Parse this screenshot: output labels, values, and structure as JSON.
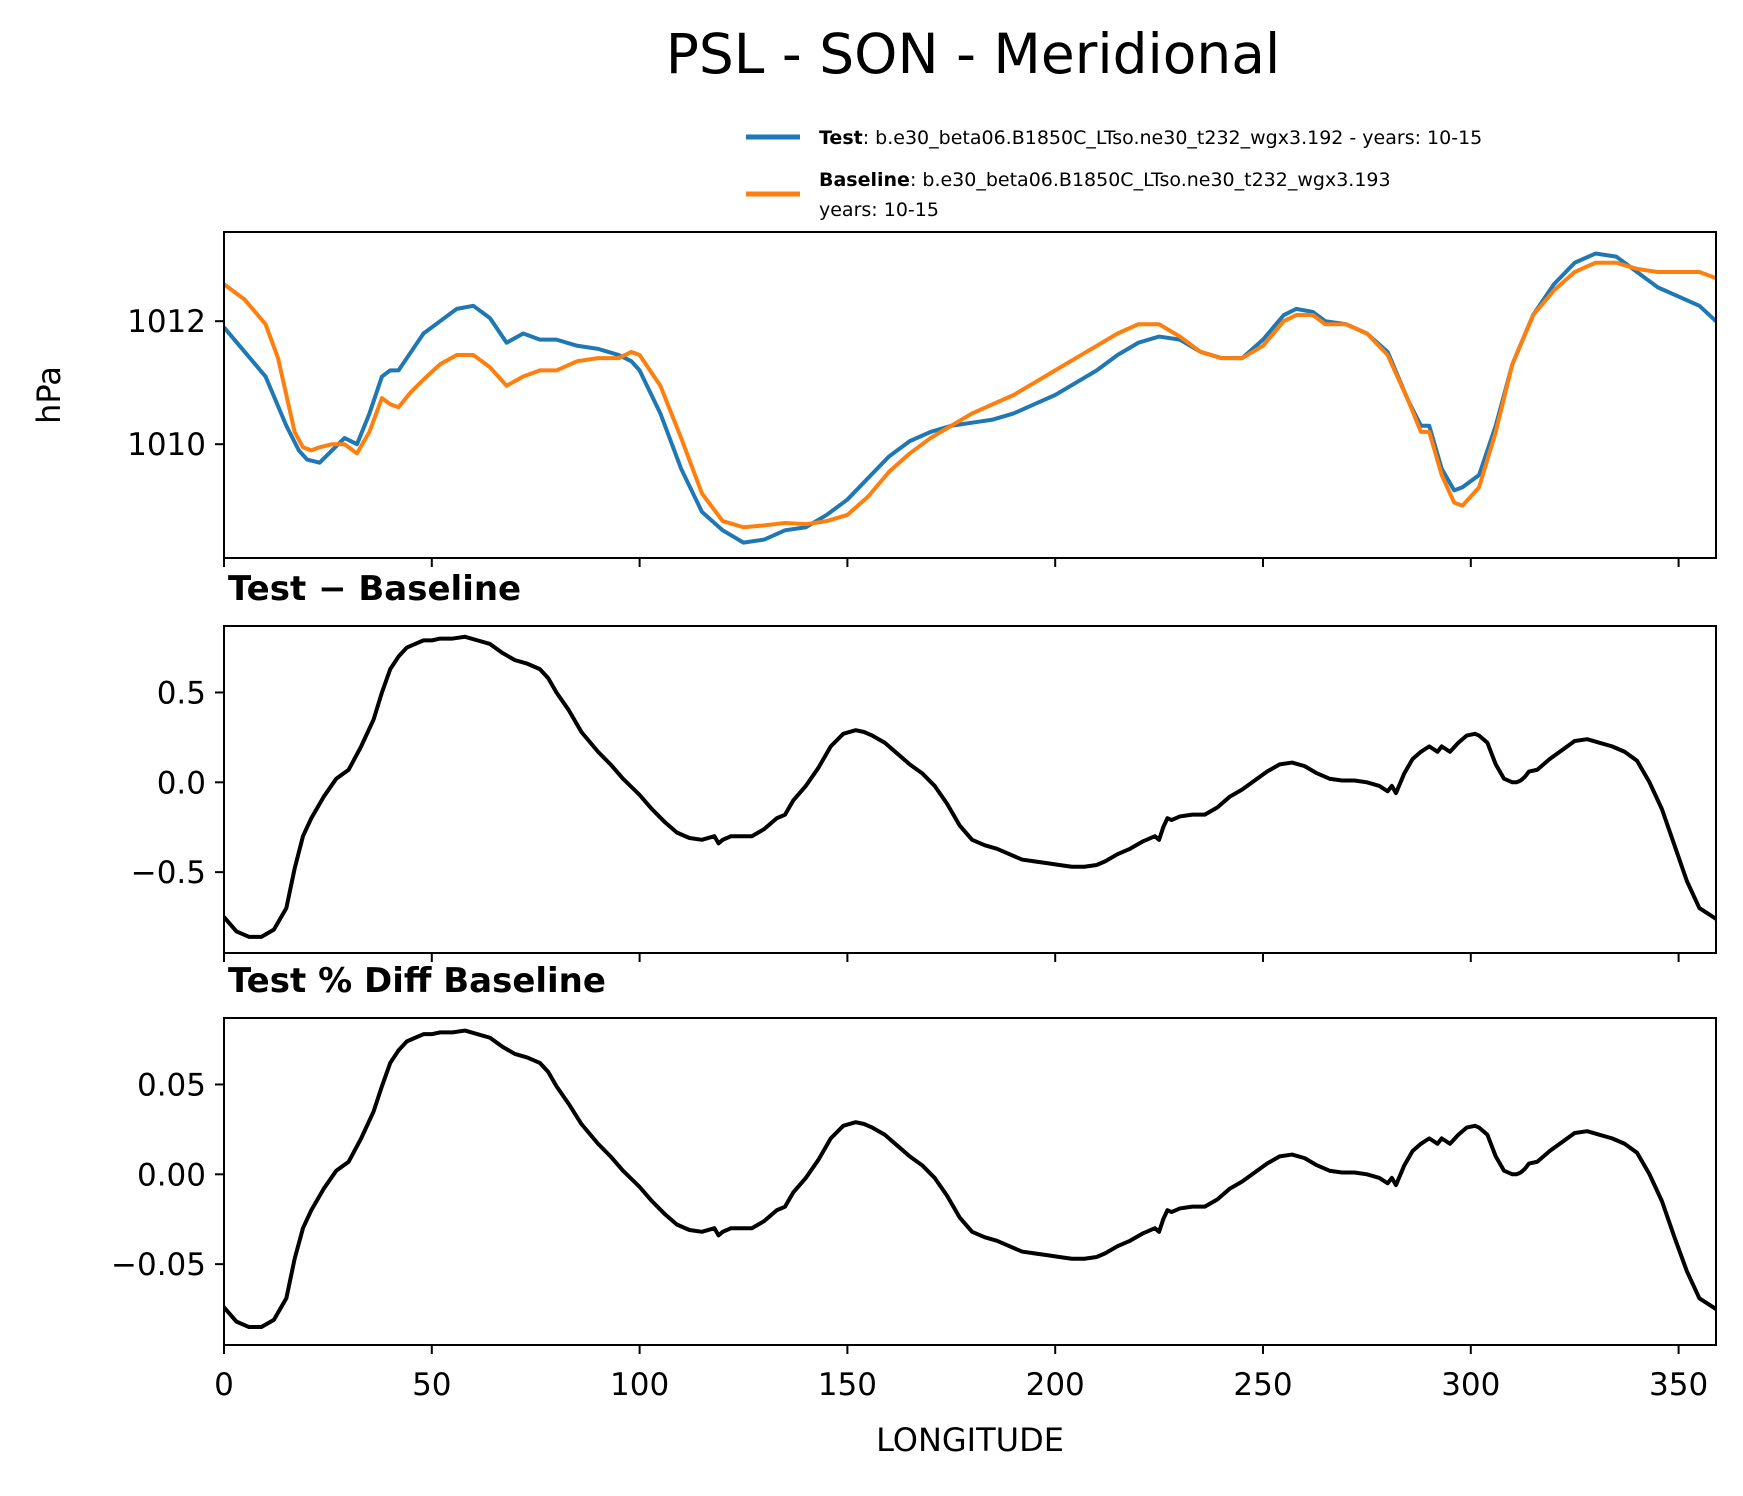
{
  "figure": {
    "title": "PSL - SON - Meridional"
  },
  "colors": {
    "test": "#1f77b4",
    "baseline": "#ff7f0e",
    "diff": "#000000"
  },
  "legend": [
    {
      "name": "Test",
      "sep": ": ",
      "text": "b.e30_beta06.B1850C_LTso.ne30_t232_wgx3.192 - years: 10-15",
      "text2": ""
    },
    {
      "name": "Baseline",
      "sep": ": ",
      "text": "b.e30_beta06.B1850C_LTso.ne30_t232_wgx3.193",
      "text2": "years: 10-15"
    }
  ],
  "chart_data": [
    {
      "type": "line",
      "title": "",
      "xlabel": "",
      "ylabel": "hPa",
      "xlim": [
        0,
        359
      ],
      "ylim": [
        1008.15,
        1013.45
      ],
      "xticks": [
        0,
        50,
        100,
        150,
        200,
        250,
        300,
        350
      ],
      "yticks": [
        1010,
        1012
      ],
      "ytick_labels": [
        "1010",
        "1012"
      ],
      "show_xtick_labels": false,
      "series": [
        {
          "name": "Test",
          "color_key": "test",
          "x": [
            0,
            5,
            10,
            15,
            18,
            20,
            23,
            26,
            29,
            32,
            35,
            38,
            40,
            42,
            45,
            48,
            52,
            56,
            60,
            64,
            68,
            72,
            76,
            80,
            85,
            90,
            95,
            98,
            100,
            105,
            110,
            115,
            120,
            125,
            130,
            135,
            140,
            145,
            150,
            155,
            160,
            165,
            170,
            175,
            180,
            185,
            190,
            195,
            200,
            205,
            210,
            215,
            220,
            225,
            230,
            235,
            240,
            245,
            250,
            255,
            258,
            262,
            265,
            270,
            275,
            280,
            285,
            288,
            290,
            293,
            296,
            298,
            302,
            306,
            310,
            315,
            320,
            325,
            330,
            335,
            340,
            345,
            350,
            355,
            359
          ],
          "y": [
            1011.9,
            1011.5,
            1011.1,
            1010.3,
            1009.9,
            1009.75,
            1009.7,
            1009.9,
            1010.1,
            1010.0,
            1010.5,
            1011.1,
            1011.2,
            1011.2,
            1011.5,
            1011.8,
            1012.0,
            1012.2,
            1012.25,
            1012.05,
            1011.65,
            1011.8,
            1011.7,
            1011.7,
            1011.6,
            1011.55,
            1011.45,
            1011.35,
            1011.2,
            1010.5,
            1009.6,
            1008.9,
            1008.6,
            1008.4,
            1008.45,
            1008.6,
            1008.65,
            1008.85,
            1009.1,
            1009.45,
            1009.8,
            1010.05,
            1010.2,
            1010.3,
            1010.35,
            1010.4,
            1010.5,
            1010.65,
            1010.8,
            1011.0,
            1011.2,
            1011.45,
            1011.65,
            1011.75,
            1011.7,
            1011.5,
            1011.4,
            1011.4,
            1011.7,
            1012.1,
            1012.2,
            1012.15,
            1012.0,
            1011.95,
            1011.8,
            1011.5,
            1010.7,
            1010.3,
            1010.3,
            1009.6,
            1009.25,
            1009.3,
            1009.5,
            1010.3,
            1011.3,
            1012.1,
            1012.6,
            1012.95,
            1013.1,
            1013.05,
            1012.8,
            1012.55,
            1012.4,
            1012.25,
            1012.0
          ]
        },
        {
          "name": "Baseline",
          "color_key": "baseline",
          "x": [
            0,
            5,
            10,
            13,
            15,
            17,
            19,
            21,
            23,
            26,
            29,
            32,
            35,
            38,
            40,
            42,
            45,
            48,
            52,
            56,
            60,
            64,
            68,
            72,
            76,
            80,
            85,
            90,
            95,
            98,
            100,
            105,
            110,
            115,
            120,
            125,
            130,
            135,
            140,
            145,
            150,
            155,
            160,
            165,
            170,
            175,
            180,
            185,
            190,
            195,
            200,
            205,
            210,
            215,
            220,
            225,
            230,
            235,
            240,
            245,
            250,
            255,
            258,
            262,
            265,
            270,
            275,
            280,
            285,
            288,
            290,
            293,
            296,
            298,
            302,
            306,
            310,
            315,
            320,
            325,
            330,
            335,
            340,
            345,
            350,
            355,
            359
          ],
          "y": [
            1012.6,
            1012.35,
            1011.95,
            1011.4,
            1010.8,
            1010.2,
            1009.95,
            1009.9,
            1009.95,
            1010.0,
            1010.0,
            1009.85,
            1010.2,
            1010.75,
            1010.65,
            1010.6,
            1010.85,
            1011.05,
            1011.3,
            1011.45,
            1011.45,
            1011.25,
            1010.95,
            1011.1,
            1011.2,
            1011.2,
            1011.35,
            1011.4,
            1011.4,
            1011.5,
            1011.45,
            1010.95,
            1010.1,
            1009.2,
            1008.75,
            1008.65,
            1008.68,
            1008.72,
            1008.7,
            1008.75,
            1008.85,
            1009.15,
            1009.55,
            1009.85,
            1010.1,
            1010.3,
            1010.5,
            1010.65,
            1010.8,
            1011.0,
            1011.2,
            1011.4,
            1011.6,
            1011.8,
            1011.95,
            1011.95,
            1011.75,
            1011.5,
            1011.4,
            1011.4,
            1011.6,
            1012.0,
            1012.1,
            1012.1,
            1011.95,
            1011.95,
            1011.8,
            1011.45,
            1010.7,
            1010.2,
            1010.2,
            1009.5,
            1009.05,
            1009.0,
            1009.3,
            1010.2,
            1011.3,
            1012.1,
            1012.5,
            1012.8,
            1012.95,
            1012.95,
            1012.85,
            1012.8,
            1012.8,
            1012.8,
            1012.7
          ]
        }
      ]
    },
    {
      "type": "line",
      "title": "Test − Baseline",
      "xlabel": "",
      "ylabel": "",
      "xlim": [
        0,
        359
      ],
      "ylim": [
        -0.95,
        0.87
      ],
      "xticks": [
        0,
        50,
        100,
        150,
        200,
        250,
        300,
        350
      ],
      "yticks": [
        -0.5,
        0.0,
        0.5
      ],
      "ytick_labels": [
        "−0.5",
        "0.0",
        "0.5"
      ],
      "show_xtick_labels": false,
      "series": [
        {
          "name": "Test − Baseline",
          "color_key": "diff",
          "x": [
            0,
            3,
            6,
            9,
            12,
            15,
            17,
            19,
            21,
            24,
            27,
            30,
            33,
            36,
            38,
            40,
            42,
            44,
            46,
            48,
            50,
            52,
            55,
            58,
            61,
            64,
            67,
            70,
            73,
            76,
            78,
            80,
            83,
            86,
            90,
            93,
            96,
            100,
            103,
            106,
            109,
            112,
            115,
            118,
            119,
            120,
            121,
            122,
            124,
            127,
            130,
            133,
            135,
            137,
            140,
            143,
            146,
            149,
            152,
            154,
            156,
            159,
            162,
            165,
            168,
            171,
            174,
            177,
            180,
            183,
            186,
            189,
            192,
            195,
            198,
            201,
            204,
            207,
            210,
            212,
            215,
            218,
            221,
            224,
            225,
            226,
            227,
            228,
            230,
            233,
            236,
            239,
            242,
            245,
            248,
            251,
            254,
            257,
            260,
            263,
            266,
            269,
            272,
            275,
            278,
            280,
            281,
            282,
            284,
            286,
            288,
            290,
            292,
            293,
            295,
            297,
            299,
            301,
            302,
            304,
            306,
            308,
            310,
            311,
            312,
            313,
            314,
            316,
            319,
            322,
            325,
            328,
            331,
            334,
            337,
            340,
            343,
            346,
            349,
            352,
            355,
            357,
            359
          ],
          "y": [
            -0.75,
            -0.83,
            -0.86,
            -0.86,
            -0.82,
            -0.7,
            -0.48,
            -0.3,
            -0.2,
            -0.08,
            0.02,
            0.07,
            0.2,
            0.35,
            0.5,
            0.63,
            0.7,
            0.75,
            0.77,
            0.79,
            0.79,
            0.8,
            0.8,
            0.81,
            0.79,
            0.77,
            0.72,
            0.68,
            0.66,
            0.63,
            0.58,
            0.5,
            0.4,
            0.28,
            0.17,
            0.1,
            0.02,
            -0.07,
            -0.15,
            -0.22,
            -0.28,
            -0.31,
            -0.32,
            -0.3,
            -0.34,
            -0.32,
            -0.31,
            -0.3,
            -0.3,
            -0.3,
            -0.26,
            -0.2,
            -0.18,
            -0.1,
            -0.02,
            0.08,
            0.2,
            0.27,
            0.29,
            0.28,
            0.26,
            0.22,
            0.16,
            0.1,
            0.05,
            -0.02,
            -0.12,
            -0.24,
            -0.32,
            -0.35,
            -0.37,
            -0.4,
            -0.43,
            -0.44,
            -0.45,
            -0.46,
            -0.47,
            -0.47,
            -0.46,
            -0.44,
            -0.4,
            -0.37,
            -0.33,
            -0.3,
            -0.32,
            -0.25,
            -0.2,
            -0.21,
            -0.19,
            -0.18,
            -0.18,
            -0.14,
            -0.08,
            -0.04,
            0.01,
            0.06,
            0.1,
            0.11,
            0.09,
            0.05,
            0.02,
            0.01,
            0.01,
            0.0,
            -0.02,
            -0.05,
            -0.02,
            -0.06,
            0.05,
            0.13,
            0.17,
            0.2,
            0.17,
            0.2,
            0.17,
            0.22,
            0.26,
            0.27,
            0.26,
            0.22,
            0.1,
            0.02,
            0.0,
            0.0,
            0.01,
            0.03,
            0.06,
            0.07,
            0.13,
            0.18,
            0.23,
            0.24,
            0.22,
            0.2,
            0.17,
            0.12,
            0.0,
            -0.15,
            -0.35,
            -0.55,
            -0.7,
            -0.73,
            -0.76
          ]
        }
      ]
    },
    {
      "type": "line",
      "title": "Test % Diff Baseline",
      "xlabel": "LONGITUDE",
      "ylabel": "",
      "xlim": [
        0,
        359
      ],
      "ylim": [
        -0.095,
        0.087
      ],
      "xticks": [
        0,
        50,
        100,
        150,
        200,
        250,
        300,
        350
      ],
      "yticks": [
        -0.05,
        0.0,
        0.05
      ],
      "ytick_labels": [
        "−0.05",
        "0.00",
        "0.05"
      ],
      "xtick_labels": [
        "0",
        "50",
        "100",
        "150",
        "200",
        "250",
        "300",
        "350"
      ],
      "show_xtick_labels": true,
      "series": [
        {
          "name": "Test % Diff Baseline",
          "color_key": "diff",
          "x": [
            0,
            3,
            6,
            9,
            12,
            15,
            17,
            19,
            21,
            24,
            27,
            30,
            33,
            36,
            38,
            40,
            42,
            44,
            46,
            48,
            50,
            52,
            55,
            58,
            61,
            64,
            67,
            70,
            73,
            76,
            78,
            80,
            83,
            86,
            90,
            93,
            96,
            100,
            103,
            106,
            109,
            112,
            115,
            118,
            119,
            120,
            121,
            122,
            124,
            127,
            130,
            133,
            135,
            137,
            140,
            143,
            146,
            149,
            152,
            154,
            156,
            159,
            162,
            165,
            168,
            171,
            174,
            177,
            180,
            183,
            186,
            189,
            192,
            195,
            198,
            201,
            204,
            207,
            210,
            212,
            215,
            218,
            221,
            224,
            225,
            226,
            227,
            228,
            230,
            233,
            236,
            239,
            242,
            245,
            248,
            251,
            254,
            257,
            260,
            263,
            266,
            269,
            272,
            275,
            278,
            280,
            281,
            282,
            284,
            286,
            288,
            290,
            292,
            293,
            295,
            297,
            299,
            301,
            302,
            304,
            306,
            308,
            310,
            311,
            312,
            313,
            314,
            316,
            319,
            322,
            325,
            328,
            331,
            334,
            337,
            340,
            343,
            346,
            349,
            352,
            355,
            357,
            359
          ],
          "y": [
            -0.074,
            -0.082,
            -0.085,
            -0.085,
            -0.081,
            -0.069,
            -0.047,
            -0.03,
            -0.02,
            -0.008,
            0.002,
            0.007,
            0.02,
            0.035,
            0.049,
            0.062,
            0.069,
            0.074,
            0.076,
            0.078,
            0.078,
            0.079,
            0.079,
            0.08,
            0.078,
            0.076,
            0.071,
            0.067,
            0.065,
            0.062,
            0.057,
            0.049,
            0.039,
            0.028,
            0.017,
            0.01,
            0.002,
            -0.007,
            -0.015,
            -0.022,
            -0.028,
            -0.031,
            -0.032,
            -0.03,
            -0.034,
            -0.032,
            -0.031,
            -0.03,
            -0.03,
            -0.03,
            -0.026,
            -0.02,
            -0.018,
            -0.01,
            -0.002,
            0.008,
            0.02,
            0.027,
            0.029,
            0.028,
            0.026,
            0.022,
            0.016,
            0.01,
            0.005,
            -0.002,
            -0.012,
            -0.024,
            -0.032,
            -0.035,
            -0.037,
            -0.04,
            -0.043,
            -0.044,
            -0.045,
            -0.046,
            -0.047,
            -0.047,
            -0.046,
            -0.044,
            -0.04,
            -0.037,
            -0.033,
            -0.03,
            -0.032,
            -0.025,
            -0.02,
            -0.021,
            -0.019,
            -0.018,
            -0.018,
            -0.014,
            -0.008,
            -0.004,
            0.001,
            0.006,
            0.01,
            0.011,
            0.009,
            0.005,
            0.002,
            0.001,
            0.001,
            0.0,
            -0.002,
            -0.005,
            -0.002,
            -0.006,
            0.005,
            0.013,
            0.017,
            0.02,
            0.017,
            0.02,
            0.017,
            0.022,
            0.026,
            0.027,
            0.026,
            0.022,
            0.01,
            0.002,
            0.0,
            0.0,
            0.001,
            0.003,
            0.006,
            0.007,
            0.013,
            0.018,
            0.023,
            0.024,
            0.022,
            0.02,
            0.017,
            0.012,
            0.0,
            -0.015,
            -0.035,
            -0.054,
            -0.069,
            -0.072,
            -0.075
          ]
        }
      ]
    }
  ]
}
